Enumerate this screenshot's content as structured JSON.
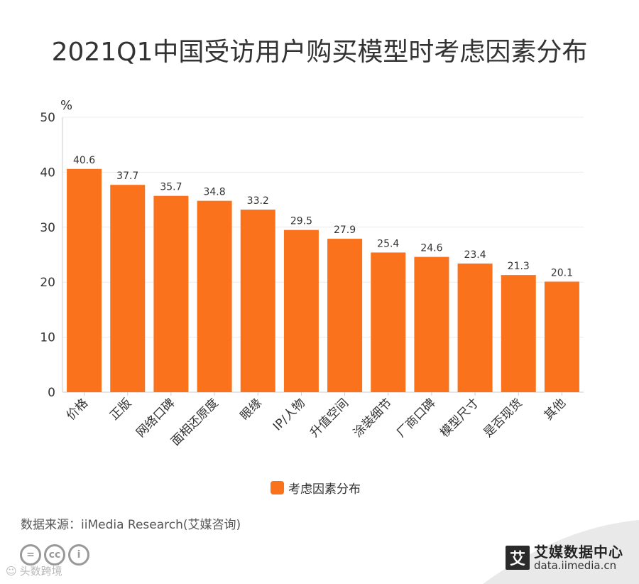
{
  "title": "2021Q1中国受访用户购买模型时考虑因素分布",
  "chart_data": {
    "type": "bar",
    "title": "2021Q1中国受访用户购买模型时考虑因素分布",
    "ylabel": "%",
    "xlabel": "",
    "ylim": [
      0,
      50
    ],
    "yticks": [
      0,
      10,
      20,
      30,
      40,
      50
    ],
    "grid": true,
    "legend_position": "bottom-center",
    "categories": [
      "价格",
      "正版",
      "网络口碑",
      "面相还原度",
      "眼缘",
      "IP/人物",
      "升值空间",
      "涂装细节",
      "厂商口碑",
      "模型尺寸",
      "是否现货",
      "其他"
    ],
    "series": [
      {
        "name": "考虑因素分布",
        "color": "#fa721c",
        "values": [
          40.6,
          37.7,
          35.7,
          34.8,
          33.2,
          29.5,
          27.9,
          25.4,
          24.6,
          23.4,
          21.3,
          20.1
        ]
      }
    ]
  },
  "source": "数据来源：iiMedia Research(艾媒咨询)",
  "watermark": "头数跨境",
  "brand": {
    "logo_char": "艾",
    "name": "艾媒数据中心",
    "url": "data.iimedia.cn"
  },
  "cc_badges": [
    "=",
    "cc",
    "i"
  ]
}
